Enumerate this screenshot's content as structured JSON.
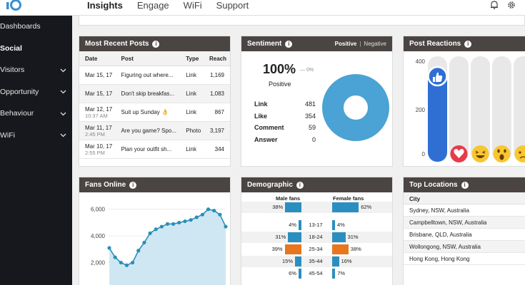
{
  "app": {
    "logo_text": "iO"
  },
  "nav": {
    "tabs": [
      "Insights",
      "Engage",
      "WiFi",
      "Support"
    ],
    "active": "Insights"
  },
  "icons": {
    "bell": "bell-icon",
    "settings": "gear-icon"
  },
  "sidebar": {
    "items": [
      {
        "label": "Dashboards",
        "chevron": false
      },
      {
        "label": "Social",
        "chevron": false,
        "active": true
      },
      {
        "label": "Visitors",
        "chevron": true
      },
      {
        "label": "Opportunity",
        "chevron": true
      },
      {
        "label": "Behaviour",
        "chevron": true
      },
      {
        "label": "WiFi",
        "chevron": true
      }
    ]
  },
  "posts": {
    "title": "Most Recent Posts",
    "columns": [
      "Date",
      "Post",
      "Type",
      "Reach"
    ],
    "rows": [
      {
        "date": "Mar 15, 17",
        "time": "",
        "post": "Figuring out where...",
        "type": "Link",
        "reach": "1,169"
      },
      {
        "date": "Mar 15, 17",
        "time": "",
        "post": "Don't skip breakfas...",
        "type": "Link",
        "reach": "1,083"
      },
      {
        "date": "Mar 12, 17",
        "time": "10:37 AM",
        "post": "Suit up Sunday 👌",
        "type": "Link",
        "reach": "867"
      },
      {
        "date": "Mar 11, 17",
        "time": "2:45 PM",
        "post": "Are you game? Spo...",
        "type": "Photo",
        "reach": "3,197"
      },
      {
        "date": "Mar 10, 17",
        "time": "2:55 PM",
        "post": "Plan your outfit sh...",
        "type": "Link",
        "reach": "344"
      }
    ]
  },
  "sentiment": {
    "title": "Sentiment",
    "tabs": {
      "positive": "Positive",
      "separator": "|",
      "negative": "Negative"
    },
    "percent": "100%",
    "change": "— 0%",
    "label": "Positive",
    "rows": [
      {
        "label": "Link",
        "value": "481"
      },
      {
        "label": "Like",
        "value": "354"
      },
      {
        "label": "Comment",
        "value": "59"
      },
      {
        "label": "Answer",
        "value": "0"
      }
    ],
    "donut_color": "#4aa3d4"
  },
  "reactions": {
    "title": "Post Reactions",
    "ticks": [
      "400",
      "200",
      "0"
    ],
    "like_fraction": 1.0,
    "icons": [
      "like-icon",
      "love-icon",
      "haha-icon",
      "wow-icon",
      "sad-icon"
    ],
    "bar_color": "#2f6fd3"
  },
  "fans_online": {
    "title": "Fans Online",
    "chart_data": {
      "type": "area",
      "ytick_labels": [
        "6,000",
        "4,000",
        "2,000"
      ],
      "ylim": [
        0,
        7000
      ],
      "x": [
        1,
        2,
        3,
        4,
        5,
        6,
        7,
        8,
        9,
        10,
        11,
        12,
        13,
        14,
        15,
        16,
        17,
        18,
        19,
        20,
        21
      ],
      "values": [
        3100,
        2400,
        2000,
        1800,
        2000,
        2900,
        3500,
        4200,
        4500,
        4700,
        4900,
        4900,
        5000,
        5100,
        5200,
        5400,
        5600,
        6000,
        5900,
        5600,
        4700
      ],
      "color": "#2a8fb8"
    }
  },
  "demographic": {
    "title": "Demographic",
    "male_label": "Male fans",
    "female_label": "Female fans",
    "rows": [
      {
        "age": "",
        "male": 38,
        "female": 62,
        "male_label": "38%",
        "female_label": "62%",
        "color": "#2a8fc0"
      },
      {
        "age": "13-17",
        "male": 4,
        "female": 4,
        "male_label": "4%",
        "female_label": "4%",
        "color": "#2a8fc0"
      },
      {
        "age": "18-24",
        "male": 31,
        "female": 31,
        "male_label": "31%",
        "female_label": "31%",
        "color": "#2a8fc0"
      },
      {
        "age": "25-34",
        "male": 39,
        "female": 38,
        "male_label": "39%",
        "female_label": "38%",
        "color": "#e8761e"
      },
      {
        "age": "35-44",
        "male": 15,
        "female": 16,
        "male_label": "15%",
        "female_label": "16%",
        "color": "#2a8fc0"
      },
      {
        "age": "45-54",
        "male": 6,
        "female": 7,
        "male_label": "6%",
        "female_label": "7%",
        "color": "#2a8fc0"
      }
    ]
  },
  "locations": {
    "title": "Top Locations",
    "column": "City",
    "rows": [
      "Sydney, NSW, Australia",
      "Campbelltown, NSW, Australia",
      "Brisbane, QLD, Australia",
      "Wollongong, NSW, Australia",
      "Hong Kong, Hong Kong"
    ]
  }
}
